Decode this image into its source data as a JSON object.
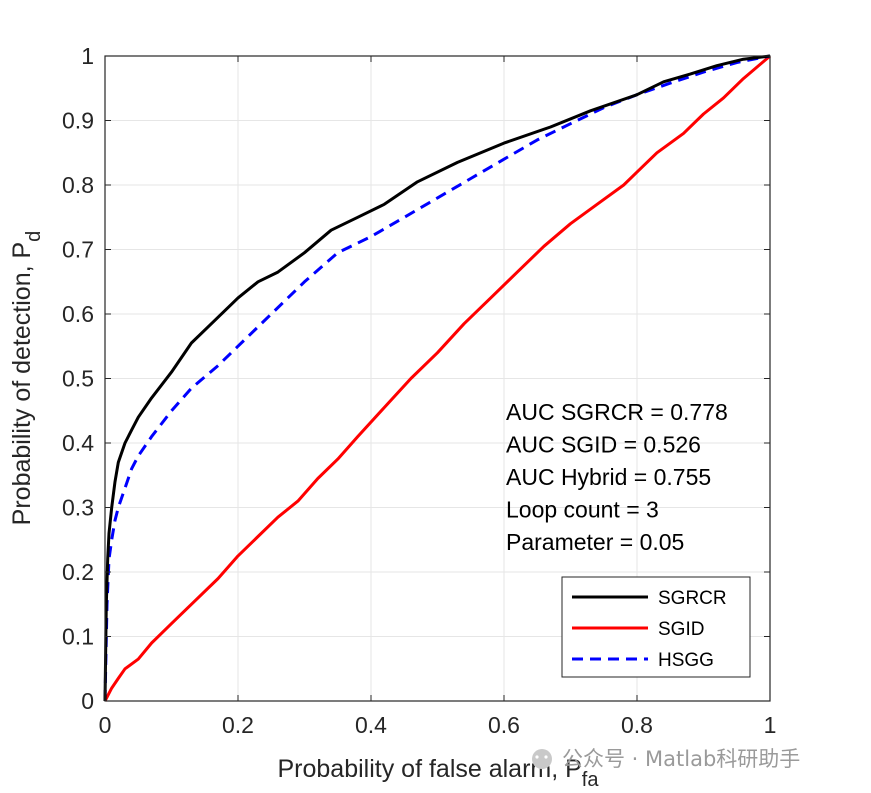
{
  "chart_data": {
    "type": "line",
    "xlabel": "Probability of false alarm, P",
    "xlabel_sub": "fa",
    "ylabel": "Probability of detection, P",
    "ylabel_sub": "d",
    "xlim": [
      0,
      1
    ],
    "ylim": [
      0,
      1
    ],
    "xticks": [
      "0",
      "0.2",
      "0.4",
      "0.6",
      "0.8",
      "1"
    ],
    "yticks": [
      "0",
      "0.1",
      "0.2",
      "0.3",
      "0.4",
      "0.5",
      "0.6",
      "0.7",
      "0.8",
      "0.9",
      "1"
    ],
    "grid": true,
    "legend_position": "bottom-right",
    "annotations": [
      "AUC SGRCR = 0.778",
      "AUC SGID = 0.526",
      "AUC Hybrid = 0.755",
      "Loop count = 3",
      "Parameter = 0.05"
    ],
    "series": [
      {
        "name": "SGRCR",
        "color": "#000000",
        "dash": "solid",
        "x": [
          0,
          0.002,
          0.004,
          0.006,
          0.01,
          0.015,
          0.02,
          0.03,
          0.04,
          0.05,
          0.07,
          0.1,
          0.13,
          0.16,
          0.2,
          0.23,
          0.26,
          0.3,
          0.34,
          0.38,
          0.42,
          0.47,
          0.53,
          0.6,
          0.67,
          0.73,
          0.8,
          0.84,
          0.88,
          0.92,
          0.96,
          1
        ],
        "y": [
          0,
          0.15,
          0.22,
          0.26,
          0.3,
          0.34,
          0.37,
          0.4,
          0.42,
          0.44,
          0.47,
          0.51,
          0.555,
          0.585,
          0.625,
          0.65,
          0.665,
          0.695,
          0.73,
          0.75,
          0.77,
          0.805,
          0.835,
          0.865,
          0.89,
          0.915,
          0.94,
          0.96,
          0.972,
          0.985,
          0.995,
          1
        ]
      },
      {
        "name": "SGID",
        "color": "#ff0000",
        "dash": "solid",
        "x": [
          0,
          0.01,
          0.02,
          0.03,
          0.05,
          0.07,
          0.1,
          0.13,
          0.17,
          0.2,
          0.23,
          0.26,
          0.29,
          0.32,
          0.35,
          0.38,
          0.42,
          0.46,
          0.5,
          0.54,
          0.58,
          0.62,
          0.66,
          0.7,
          0.74,
          0.78,
          0.8,
          0.83,
          0.87,
          0.9,
          0.93,
          0.96,
          1
        ],
        "y": [
          0,
          0.02,
          0.035,
          0.05,
          0.065,
          0.09,
          0.12,
          0.15,
          0.19,
          0.225,
          0.255,
          0.285,
          0.31,
          0.345,
          0.375,
          0.41,
          0.455,
          0.5,
          0.54,
          0.585,
          0.625,
          0.665,
          0.705,
          0.74,
          0.77,
          0.8,
          0.82,
          0.85,
          0.88,
          0.91,
          0.935,
          0.965,
          1
        ]
      },
      {
        "name": "HSGG",
        "color": "#0000ff",
        "dash": "dashed",
        "x": [
          0,
          0.003,
          0.006,
          0.01,
          0.015,
          0.02,
          0.03,
          0.04,
          0.05,
          0.07,
          0.1,
          0.13,
          0.17,
          0.2,
          0.25,
          0.3,
          0.35,
          0.4,
          0.45,
          0.5,
          0.55,
          0.6,
          0.65,
          0.7,
          0.75,
          0.8,
          0.85,
          0.9,
          0.95,
          1
        ],
        "y": [
          0,
          0.15,
          0.22,
          0.25,
          0.28,
          0.3,
          0.33,
          0.36,
          0.38,
          0.41,
          0.45,
          0.485,
          0.52,
          0.55,
          0.6,
          0.65,
          0.695,
          0.72,
          0.75,
          0.78,
          0.81,
          0.84,
          0.87,
          0.895,
          0.92,
          0.94,
          0.958,
          0.975,
          0.99,
          1
        ]
      }
    ]
  },
  "watermark": "公众号 · Matlab科研助手"
}
